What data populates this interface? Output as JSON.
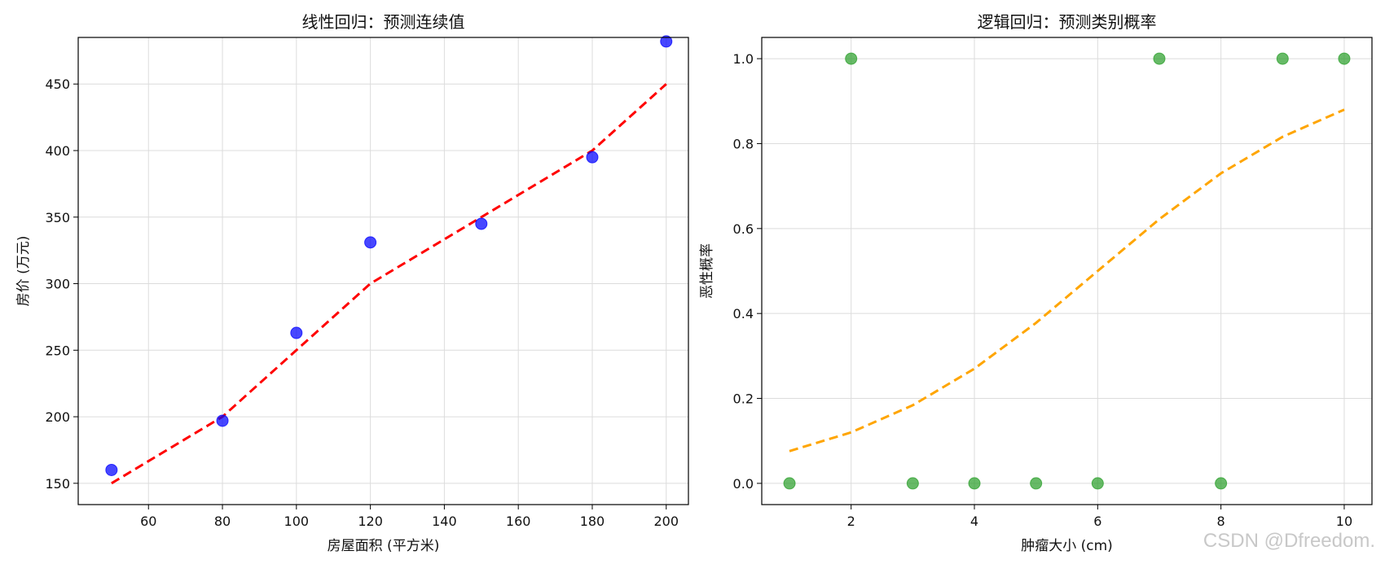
{
  "watermark": "CSDN @Dfreedom.",
  "chart_data": [
    {
      "type": "scatter",
      "title": "线性回归：预测连续值",
      "xlabel": "房屋面积 (平方米)",
      "ylabel": "房价 (万元)",
      "xlim": [
        41,
        206
      ],
      "ylim": [
        134,
        485
      ],
      "xticks": [
        60,
        80,
        100,
        120,
        140,
        160,
        180,
        200
      ],
      "yticks": [
        150,
        200,
        250,
        300,
        350,
        400,
        450
      ],
      "grid": true,
      "series": [
        {
          "kind": "points",
          "color": "#0000ff",
          "x": [
            50,
            80,
            100,
            120,
            150,
            180,
            200
          ],
          "y": [
            160,
            197,
            263,
            331,
            345,
            395,
            482
          ]
        },
        {
          "kind": "dashed-line",
          "color": "#ff0000",
          "x": [
            50,
            80,
            100,
            120,
            150,
            180,
            200
          ],
          "y": [
            150,
            200,
            250,
            300,
            350,
            400,
            450
          ]
        }
      ]
    },
    {
      "type": "scatter",
      "title": "逻辑回归：预测类别概率",
      "xlabel": "肿瘤大小 (cm)",
      "ylabel": "恶性概率",
      "xlim": [
        0.55,
        10.45
      ],
      "ylim": [
        -0.05,
        1.05
      ],
      "xticks": [
        2,
        4,
        6,
        8,
        10
      ],
      "yticks": [
        0.0,
        0.2,
        0.4,
        0.6,
        0.8,
        1.0
      ],
      "ytick_labels": [
        "0.0",
        "0.2",
        "0.4",
        "0.6",
        "0.8",
        "1.0"
      ],
      "grid": true,
      "series": [
        {
          "kind": "points",
          "color": "#2ca02c",
          "x": [
            1,
            2,
            3,
            4,
            5,
            6,
            7,
            8,
            9,
            10
          ],
          "y": [
            0,
            1,
            0,
            0,
            0,
            0,
            1,
            0,
            1,
            1
          ]
        },
        {
          "kind": "dashed-line",
          "color": "#ffa500",
          "x": [
            1,
            2,
            3,
            4,
            5,
            6,
            7,
            8,
            9,
            10
          ],
          "y": [
            0.076,
            0.12,
            0.184,
            0.27,
            0.378,
            0.5,
            0.622,
            0.73,
            0.816,
            0.88
          ]
        }
      ]
    }
  ]
}
